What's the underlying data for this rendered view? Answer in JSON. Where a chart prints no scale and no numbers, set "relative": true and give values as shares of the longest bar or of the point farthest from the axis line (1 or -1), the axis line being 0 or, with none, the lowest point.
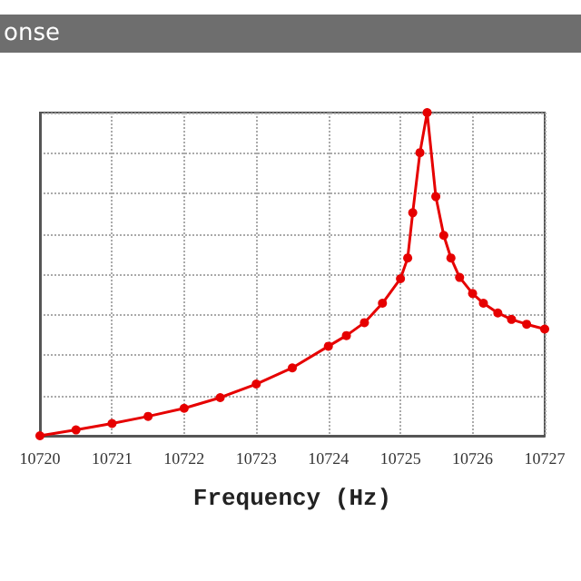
{
  "chart_data": {
    "type": "line",
    "title": "onse",
    "xlabel": "Frequency (Hz)",
    "relative": true,
    "x": [
      10720,
      10720.5,
      10721,
      10721.5,
      10722,
      10722.5,
      10723,
      10723.5,
      10724,
      10724.25,
      10724.5,
      10724.75,
      10725,
      10725.1,
      10725.17,
      10725.27,
      10725.37,
      10725.49,
      10725.6,
      10725.7,
      10725.82,
      10726,
      10726.15,
      10726.35,
      10726.54,
      10726.75,
      10727
    ],
    "series": [
      {
        "color": "#e60000",
        "values": [
          0,
          0.018,
          0.038,
          0.06,
          0.085,
          0.118,
          0.16,
          0.21,
          0.277,
          0.31,
          0.35,
          0.41,
          0.486,
          0.55,
          0.69,
          0.876,
          1,
          0.74,
          0.62,
          0.55,
          0.49,
          0.44,
          0.41,
          0.38,
          0.36,
          0.345,
          0.33
        ]
      }
    ],
    "xlim": [
      10720,
      10727
    ],
    "xticks": [
      10720,
      10721,
      10722,
      10723,
      10724,
      10725,
      10726,
      10727
    ],
    "grid": true,
    "marker": "circle",
    "line_style": "solid"
  }
}
